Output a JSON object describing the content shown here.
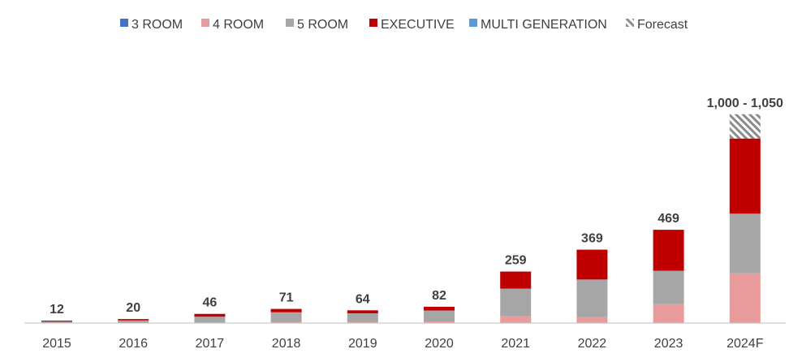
{
  "chart_data": {
    "type": "bar",
    "stacked": true,
    "categories": [
      "2015",
      "2016",
      "2017",
      "2018",
      "2019",
      "2020",
      "2021",
      "2022",
      "2023",
      "2024F"
    ],
    "series": [
      {
        "name": "3 ROOM",
        "color": "#4472C4",
        "values": [
          0,
          0,
          0,
          0,
          0,
          0,
          0,
          0,
          0,
          0
        ]
      },
      {
        "name": "4 ROOM",
        "color": "#E99A9A",
        "values": [
          1,
          2,
          4,
          6,
          6,
          8,
          35,
          30,
          95,
          250
        ]
      },
      {
        "name": "5 ROOM",
        "color": "#A6A6A6",
        "values": [
          6,
          11,
          28,
          48,
          43,
          55,
          138,
          189,
          168,
          300
        ]
      },
      {
        "name": "EXECUTIVE",
        "color": "#C00000",
        "values": [
          5,
          7,
          14,
          17,
          15,
          19,
          86,
          150,
          206,
          378
        ]
      },
      {
        "name": "MULTI GENERATION",
        "color": "#5B9BD5",
        "values": [
          0,
          0,
          0,
          0,
          0,
          0,
          0,
          0,
          0,
          0
        ]
      }
    ],
    "forecast": {
      "name": "Forecast",
      "category": "2024F",
      "base": 928,
      "top": 1050
    },
    "totals": [
      "12",
      "20",
      "46",
      "71",
      "64",
      "82",
      "259",
      "369",
      "469",
      "1,000 - 1,050"
    ],
    "legend_position": "top",
    "ylim": [
      0,
      1100
    ],
    "grid": false
  }
}
